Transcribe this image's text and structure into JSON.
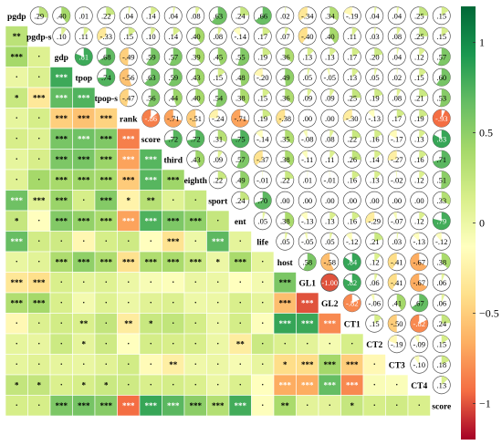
{
  "chart_data": {
    "type": "heatmap",
    "subtype": "correlation-matrix",
    "variables": [
      "pgdp",
      "pgdp-s",
      "gdp",
      "tpop",
      "tpop-s",
      "rank",
      "score",
      "third",
      "eighth",
      "sport",
      "ent",
      "life",
      "host",
      "GL1",
      "GL2",
      "CT1",
      "CT2",
      "CT3",
      "CT4",
      "score"
    ],
    "upper_values": [
      [
        null,
        0.29,
        0.4,
        0.01,
        0.22,
        0.04,
        0.14,
        0.04,
        0.08,
        0.63,
        0.24,
        0.66,
        0.02,
        -0.34,
        0.34,
        -0.19,
        0.04,
        0.04,
        0.25,
        0.15
      ],
      [
        null,
        null,
        0.1,
        0.11,
        -0.33,
        0.15,
        0.1,
        0.14,
        0.4,
        0.08,
        -0.14,
        0.17,
        0.07,
        -0.4,
        0.4,
        0.11,
        0.03,
        0.08,
        0.25,
        0.15
      ],
      [
        null,
        null,
        null,
        0.81,
        0.68,
        -0.49,
        0.59,
        0.57,
        0.39,
        0.45,
        0.55,
        0.19,
        0.36,
        0.13,
        0.13,
        0.17,
        0.2,
        0.04,
        0.12,
        0.57
      ],
      [
        null,
        null,
        null,
        null,
        0.74,
        -0.56,
        0.63,
        0.59,
        0.43,
        0.15,
        0.48,
        -0.2,
        0.49,
        0.05,
        -0.05,
        0.13,
        0.05,
        0.02,
        0.15,
        0.6
      ],
      [
        null,
        null,
        null,
        null,
        null,
        -0.47,
        0.56,
        0.44,
        0.4,
        0.54,
        0.38,
        0.15,
        0.36,
        0.09,
        0.09,
        0.25,
        0.19,
        0.08,
        0.21,
        0.53
      ],
      [
        null,
        null,
        null,
        null,
        null,
        null,
        -0.86,
        -0.71,
        -0.51,
        -0.24,
        -0.71,
        0.19,
        -0.38,
        0.0,
        0.0,
        -0.3,
        -0.13,
        0.17,
        0.19,
        -0.93
      ],
      [
        null,
        null,
        null,
        null,
        null,
        null,
        null,
        0.72,
        0.72,
        0.31,
        0.75,
        -0.14,
        0.35,
        -0.08,
        0.08,
        0.22,
        0.16,
        -0.17,
        0.13,
        0.83
      ],
      [
        null,
        null,
        null,
        null,
        null,
        null,
        null,
        null,
        0.43,
        0.09,
        0.57,
        -0.37,
        0.38,
        -0.11,
        0.11,
        0.26,
        0.14,
        -0.27,
        0.16,
        0.71
      ],
      [
        null,
        null,
        null,
        null,
        null,
        null,
        null,
        null,
        null,
        0.22,
        0.49,
        -0.01,
        0.22,
        0.01,
        -0.01,
        0.16,
        0.13,
        -0.02,
        0.12,
        0.51
      ],
      [
        null,
        null,
        null,
        null,
        null,
        null,
        null,
        null,
        null,
        null,
        0.24,
        0.7,
        0.0,
        0.0,
        0.0,
        0.0,
        0.0,
        0.0,
        0.0,
        0.33
      ],
      [
        null,
        null,
        null,
        null,
        null,
        null,
        null,
        null,
        null,
        null,
        null,
        0.05,
        0.38,
        -0.13,
        0.13,
        0.16,
        -0.29,
        -0.07,
        0.12,
        0.79
      ],
      [
        null,
        null,
        null,
        null,
        null,
        null,
        null,
        null,
        null,
        null,
        null,
        null,
        0.05,
        -0.05,
        0.05,
        -0.12,
        0.21,
        0.03,
        -0.13,
        -0.12
      ],
      [
        null,
        null,
        null,
        null,
        null,
        null,
        null,
        null,
        null,
        null,
        null,
        null,
        null,
        0.58,
        -0.58,
        0.84,
        0.12,
        -0.41,
        -0.67,
        0.38
      ],
      [
        null,
        null,
        null,
        null,
        null,
        null,
        null,
        null,
        null,
        null,
        null,
        null,
        null,
        null,
        -1.0,
        0.82,
        0.06,
        -0.41,
        -0.67,
        0.06
      ],
      [
        null,
        null,
        null,
        null,
        null,
        null,
        null,
        null,
        null,
        null,
        null,
        null,
        null,
        null,
        null,
        -0.82,
        -0.06,
        0.41,
        0.67,
        0.06
      ],
      [
        null,
        null,
        null,
        null,
        null,
        null,
        null,
        null,
        null,
        null,
        null,
        null,
        null,
        null,
        null,
        null,
        0.15,
        -0.5,
        -0.82,
        0.24
      ],
      [
        null,
        null,
        null,
        null,
        null,
        null,
        null,
        null,
        null,
        null,
        null,
        null,
        null,
        null,
        null,
        null,
        null,
        -0.19,
        -0.09,
        0.15
      ],
      [
        null,
        null,
        null,
        null,
        null,
        null,
        null,
        null,
        null,
        null,
        null,
        null,
        null,
        null,
        null,
        null,
        null,
        null,
        -0.1,
        0.18
      ],
      [
        null,
        null,
        null,
        null,
        null,
        null,
        null,
        null,
        null,
        null,
        null,
        null,
        null,
        null,
        null,
        null,
        null,
        null,
        null,
        0.13
      ],
      [
        null,
        null,
        null,
        null,
        null,
        null,
        null,
        null,
        null,
        null,
        null,
        null,
        null,
        null,
        null,
        null,
        null,
        null,
        null,
        null
      ]
    ],
    "lower_stars": [
      [
        "",
        "",
        "",
        "",
        "",
        "",
        "",
        "",
        "",
        "",
        "",
        "",
        "",
        "",
        "",
        "",
        "",
        "",
        "",
        ""
      ],
      [
        "**",
        "",
        "",
        "",
        "",
        "",
        "",
        "",
        "",
        "",
        "",
        "",
        "",
        "",
        "",
        "",
        "",
        "",
        "",
        ""
      ],
      [
        "***",
        ".",
        "",
        "",
        "",
        "",
        "",
        "",
        "",
        "",
        "",
        "",
        "",
        "",
        "",
        "",
        "",
        "",
        "",
        ""
      ],
      [
        ".",
        ".",
        "***",
        "",
        "",
        "",
        "",
        "",
        "",
        "",
        "",
        "",
        "",
        "",
        "",
        "",
        "",
        "",
        "",
        ""
      ],
      [
        "*",
        "***",
        "***",
        "***",
        "",
        "",
        "",
        "",
        "",
        "",
        "",
        "",
        "",
        "",
        "",
        "",
        "",
        "",
        "",
        ""
      ],
      [
        ".",
        ".",
        "***",
        "***",
        "***",
        "",
        "",
        "",
        "",
        "",
        "",
        "",
        "",
        "",
        "",
        "",
        "",
        "",
        "",
        ""
      ],
      [
        ".",
        ".",
        "***",
        "***",
        "***",
        "***",
        "",
        "",
        "",
        "",
        "",
        "",
        "",
        "",
        "",
        "",
        "",
        "",
        "",
        ""
      ],
      [
        ".",
        ".",
        "***",
        "***",
        "***",
        "***",
        "***",
        "",
        "",
        "",
        "",
        "",
        "",
        "",
        "",
        "",
        "",
        "",
        "",
        ""
      ],
      [
        ".",
        ".",
        "***",
        "***",
        "***",
        "***",
        "***",
        "***",
        "",
        "",
        "",
        "",
        "",
        "",
        "",
        "",
        "",
        "",
        "",
        ""
      ],
      [
        "***",
        "***",
        "***",
        ".",
        "***",
        "*",
        "**",
        ".",
        ".",
        "",
        "",
        "",
        "",
        "",
        "",
        "",
        "",
        "",
        "",
        ""
      ],
      [
        "*",
        ".",
        "***",
        "***",
        "***",
        "***",
        "***",
        "***",
        "***",
        ".",
        "",
        "",
        "",
        "",
        "",
        "",
        "",
        "",
        "",
        ""
      ],
      [
        "***",
        ".",
        ".",
        ".",
        ".",
        ".",
        ".",
        "***",
        ".",
        "***",
        ".",
        "",
        "",
        "",
        "",
        "",
        "",
        "",
        "",
        ""
      ],
      [
        ".",
        ".",
        "***",
        "***",
        "***",
        "***",
        "***",
        "***",
        "***",
        "*",
        "***",
        ".",
        "",
        "",
        "",
        "",
        "",
        "",
        "",
        ""
      ],
      [
        "***",
        "***",
        ".",
        ".",
        ".",
        ".",
        ".",
        ".",
        ".",
        ".",
        ".",
        ".",
        "***",
        "",
        "",
        "",
        "",
        "",
        "",
        ""
      ],
      [
        "***",
        "***",
        ".",
        ".",
        ".",
        ".",
        ".",
        ".",
        ".",
        ".",
        ".",
        ".",
        "***",
        "***",
        "",
        "",
        "",
        "",
        "",
        ""
      ],
      [
        ".",
        ".",
        ".",
        "**",
        ".",
        "**",
        "*",
        ".",
        ".",
        ".",
        ".",
        ".",
        "***",
        "***",
        "***",
        "",
        "",
        "",
        "",
        ""
      ],
      [
        ".",
        ".",
        ".",
        "*",
        ".",
        ".",
        ".",
        ".",
        ".",
        ".",
        "**",
        ".",
        ".",
        ".",
        ".",
        ".",
        "",
        "",
        "",
        ""
      ],
      [
        ".",
        ".",
        ".",
        ".",
        ".",
        ".",
        ".",
        "**",
        ".",
        ".",
        ".",
        ".",
        "*",
        "***",
        "***",
        "***",
        ".",
        "",
        "",
        ""
      ],
      [
        "*",
        "*",
        ".",
        "*",
        "*",
        ".",
        ".",
        ".",
        ".",
        ".",
        ".",
        ".",
        "***",
        "***",
        "***",
        "***",
        ".",
        ".",
        "",
        ""
      ],
      [
        ".",
        ".",
        "***",
        "***",
        "***",
        "***",
        "***",
        "***",
        "***",
        "***",
        "***",
        ".",
        "**",
        ".",
        ".",
        "*",
        ".",
        ".",
        ".",
        ""
      ]
    ],
    "colorbar": {
      "range": [
        -1.2,
        1.2
      ],
      "ticks": [
        1,
        0.5,
        0,
        -0.5,
        -1
      ],
      "tick_labels": [
        "1",
        "0.5",
        "0",
        "−0.5",
        "−1"
      ],
      "colors": [
        "#a50026",
        "#f46d43",
        "#fdae61",
        "#fee08b",
        "#ffffbf",
        "#d9ef8b",
        "#a6d96a",
        "#66bd63",
        "#1a9850",
        "#006837"
      ]
    }
  }
}
